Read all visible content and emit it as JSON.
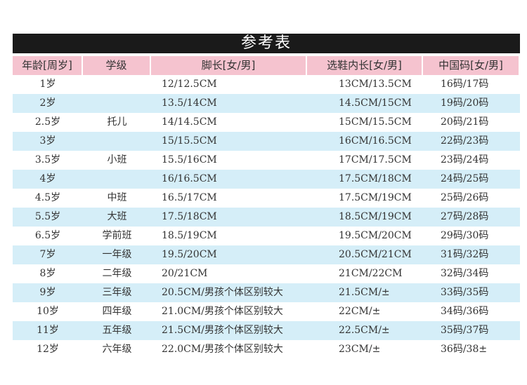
{
  "title": "参考表",
  "table": {
    "header": [
      "年龄[周岁]",
      "学级",
      "脚长[女/男]",
      "选鞋内长[女/男]",
      "中国码[女/男]"
    ],
    "rows": [
      [
        "1岁",
        null,
        "12/12.5CM",
        "13CM/13.5CM",
        "16码/17码"
      ],
      [
        "2岁",
        null,
        "13.5/14CM",
        "14.5CM/15CM",
        "19码/20码"
      ],
      [
        "2.5岁",
        "托儿",
        "14/14.5CM",
        "15CM/15.5CM",
        "20码/21码"
      ],
      [
        "3岁",
        null,
        "15/15.5CM",
        "16CM/16.5CM",
        "22码/23码"
      ],
      [
        "3.5岁",
        "小班",
        "15.5/16CM",
        "17CM/17.5CM",
        "23码/24码"
      ],
      [
        "4岁",
        null,
        "16/16.5CM",
        "17.5CM/18CM",
        "24码/25码"
      ],
      [
        "4.5岁",
        "中班",
        "16.5/17CM",
        "17.5CM/19CM",
        "25码/26码"
      ],
      [
        "5.5岁",
        "大班",
        "17.5/18CM",
        "18.5CM/19CM",
        "27码/28码"
      ],
      [
        "6.5岁",
        "学前班",
        "18.5/19CM",
        "19.5CM/20CM",
        "29码/30码"
      ],
      [
        "7岁",
        "一年级",
        "19.5/20CM",
        "20.5CM/21CM",
        "31码/32码"
      ],
      [
        "8岁",
        "二年级",
        "20/21CM",
        "21CM/22CM",
        "32码/34码"
      ],
      [
        "9岁",
        "三年级",
        "20.5CM/男孩个体区别较大",
        "21.5CM/±",
        "33码/35码"
      ],
      [
        "10岁",
        "四年级",
        "21.0CM/男孩个体区别较大",
        "22CM/±",
        "34码/36码"
      ],
      [
        "11岁",
        "五年级",
        "21.5CM/男孩个体区别较大",
        "22.5CM/±",
        "35码/37码"
      ],
      [
        "12岁",
        "六年级",
        "22.0CM/男孩个体区别较大",
        "23CM/±",
        "36码/38±"
      ]
    ]
  }
}
